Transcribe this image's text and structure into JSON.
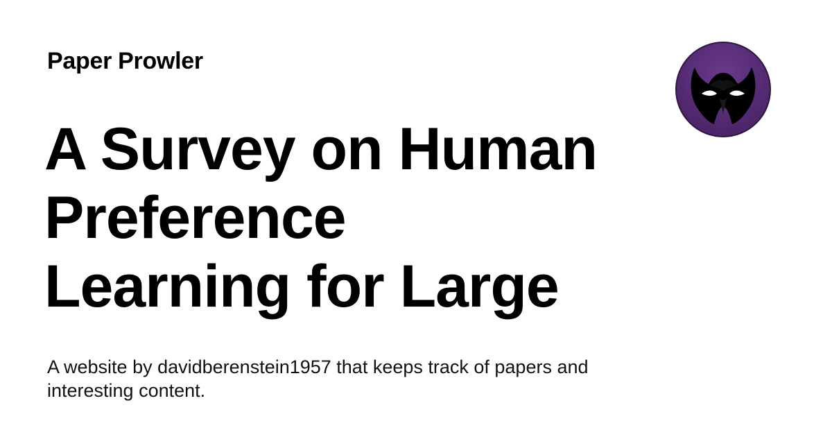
{
  "site": {
    "name": "Paper Prowler"
  },
  "title": {
    "lines": [
      "A Survey on Human",
      "Preference",
      "Learning for Large"
    ]
  },
  "description": {
    "lines": [
      "A website by davidberenstein1957 that keeps track of papers and",
      "interesting content."
    ]
  },
  "logo": {
    "icon": "masked-face-icon",
    "colors": {
      "circle": "#5b2f7a",
      "ring": "#3a1a4e",
      "mask": "#000000",
      "eyes": "#ffffff"
    }
  },
  "colors": {
    "background": "#ffffff",
    "text": "#000000"
  }
}
